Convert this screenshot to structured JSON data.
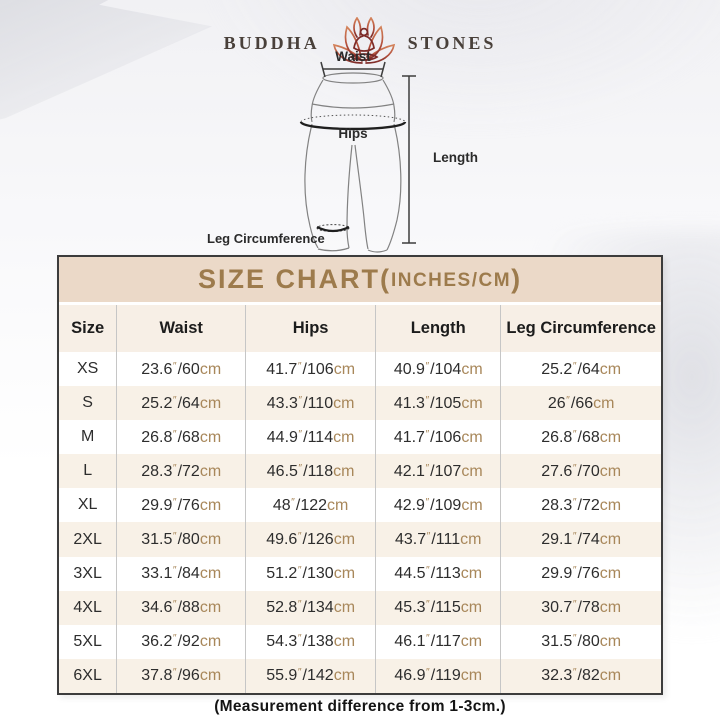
{
  "brand": {
    "word_left": "BUDDHA",
    "word_right": "STONES",
    "logo_icon": "lotus-meditator-icon"
  },
  "diagram": {
    "waist_label": "Waist",
    "hips_label": "Hips",
    "length_label": "Length",
    "leg_circumference_label": "Leg Circumference"
  },
  "size_chart": {
    "title_main": "SIZE CHART(",
    "title_sub": "INCHES/CM",
    "title_close": ")",
    "columns": [
      "Size",
      "Waist",
      "Hips",
      "Length",
      "Leg Circumference"
    ],
    "unit_inch_mark": "″",
    "unit_cm": "cm",
    "rows": [
      {
        "size": "XS",
        "waist": [
          "23.6",
          "60"
        ],
        "hips": [
          "41.7",
          "106"
        ],
        "length": [
          "40.9",
          "104"
        ],
        "leg": [
          "25.2",
          "64"
        ]
      },
      {
        "size": "S",
        "waist": [
          "25.2",
          "64"
        ],
        "hips": [
          "43.3",
          "110"
        ],
        "length": [
          "41.3",
          "105"
        ],
        "leg": [
          "26",
          "66"
        ]
      },
      {
        "size": "M",
        "waist": [
          "26.8",
          "68"
        ],
        "hips": [
          "44.9",
          "114"
        ],
        "length": [
          "41.7",
          "106"
        ],
        "leg": [
          "26.8",
          "68"
        ]
      },
      {
        "size": "L",
        "waist": [
          "28.3",
          "72"
        ],
        "hips": [
          "46.5",
          "118"
        ],
        "length": [
          "42.1",
          "107"
        ],
        "leg": [
          "27.6",
          "70"
        ]
      },
      {
        "size": "XL",
        "waist": [
          "29.9",
          "76"
        ],
        "hips": [
          "48",
          "122"
        ],
        "length": [
          "42.9",
          "109"
        ],
        "leg": [
          "28.3",
          "72"
        ]
      },
      {
        "size": "2XL",
        "waist": [
          "31.5",
          "80"
        ],
        "hips": [
          "49.6",
          "126"
        ],
        "length": [
          "43.7",
          "111"
        ],
        "leg": [
          "29.1",
          "74"
        ]
      },
      {
        "size": "3XL",
        "waist": [
          "33.1",
          "84"
        ],
        "hips": [
          "51.2",
          "130"
        ],
        "length": [
          "44.5",
          "113"
        ],
        "leg": [
          "29.9",
          "76"
        ]
      },
      {
        "size": "4XL",
        "waist": [
          "34.6",
          "88"
        ],
        "hips": [
          "52.8",
          "134"
        ],
        "length": [
          "45.3",
          "115"
        ],
        "leg": [
          "30.7",
          "78"
        ]
      },
      {
        "size": "5XL",
        "waist": [
          "36.2",
          "92"
        ],
        "hips": [
          "54.3",
          "138"
        ],
        "length": [
          "46.1",
          "117"
        ],
        "leg": [
          "31.5",
          "80"
        ]
      },
      {
        "size": "6XL",
        "waist": [
          "37.8",
          "96"
        ],
        "hips": [
          "55.9",
          "142"
        ],
        "length": [
          "46.9",
          "119"
        ],
        "leg": [
          "32.3",
          "82"
        ]
      }
    ]
  },
  "footnote": "(Measurement difference from 1-3cm.)",
  "chart_data": {
    "type": "table",
    "title": "SIZE CHART(INCHES/CM)",
    "columns": [
      "Size",
      "Waist",
      "Hips",
      "Length",
      "Leg Circumference"
    ],
    "rows": [
      [
        "XS",
        "23.6″/60cm",
        "41.7″/106cm",
        "40.9″/104cm",
        "25.2″/64cm"
      ],
      [
        "S",
        "25.2″/64cm",
        "43.3″/110cm",
        "41.3″/105cm",
        "26″/66cm"
      ],
      [
        "M",
        "26.8″/68cm",
        "44.9″/114cm",
        "41.7″/106cm",
        "26.8″/68cm"
      ],
      [
        "L",
        "28.3″/72cm",
        "46.5″/118cm",
        "42.1″/107cm",
        "27.6″/70cm"
      ],
      [
        "XL",
        "29.9″/76cm",
        "48″/122cm",
        "42.9″/109cm",
        "28.3″/72cm"
      ],
      [
        "2XL",
        "31.5″/80cm",
        "49.6″/126cm",
        "43.7″/111cm",
        "29.1″/74cm"
      ],
      [
        "3XL",
        "33.1″/84cm",
        "51.2″/130cm",
        "44.5″/113cm",
        "29.9″/76cm"
      ],
      [
        "4XL",
        "34.6″/88cm",
        "52.8″/134cm",
        "45.3″/115cm",
        "30.7″/78cm"
      ],
      [
        "5XL",
        "36.2″/92cm",
        "54.3″/138cm",
        "46.1″/117cm",
        "31.5″/80cm"
      ],
      [
        "6XL",
        "37.8″/96cm",
        "55.9″/142cm",
        "46.9″/119cm",
        "32.3″/82cm"
      ]
    ],
    "footnote": "(Measurement difference from 1-3cm.)"
  },
  "colors": {
    "title_bar_bg": "#ebd9c8",
    "title_text": "#9d7b4c",
    "header_bg": "#f7efe6",
    "row_alt_bg": "#f8f1e7",
    "unit_text": "#a8875a",
    "number_text": "#2d2d2d",
    "table_border": "#3c3c3c",
    "logo_text": "#49403a",
    "lotus_gradient_top": "#d4845c",
    "lotus_gradient_bottom": "#7c2b28"
  }
}
